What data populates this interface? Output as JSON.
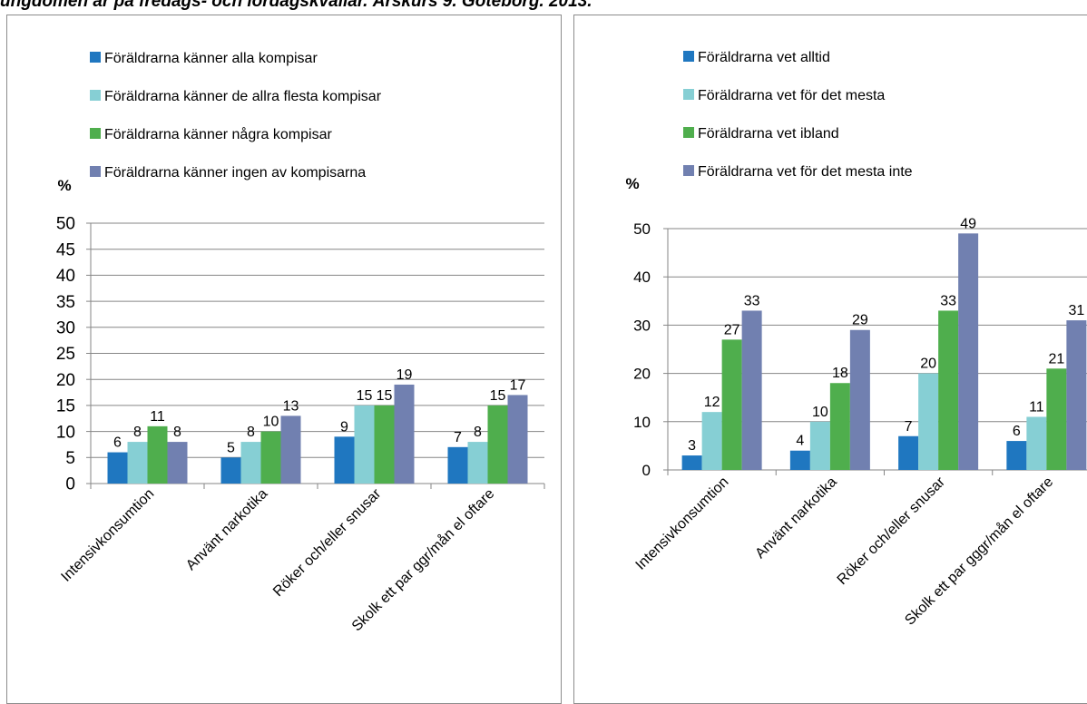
{
  "page": {
    "title": "ungdomen är på fredags- och lördagskvällar. Årskurs 9. Göteborg. 2013."
  },
  "colors": {
    "series": [
      "#1f77c0",
      "#86cfd4",
      "#4fae4d",
      "#7180b0"
    ],
    "axis": "#868686",
    "grid": "#868686",
    "border": "#8c8c8c"
  },
  "chart_data": [
    {
      "type": "bar",
      "title": "",
      "xlabel": "",
      "ylabel": "%",
      "ylim": [
        0,
        50
      ],
      "yticks": [
        0,
        5,
        10,
        15,
        20,
        25,
        30,
        35,
        40,
        45,
        50
      ],
      "grid": true,
      "legend_position": "top",
      "categories": [
        "Intensivkonsumtion",
        "Använt narkotika",
        "Röker och/eller snusar",
        "Skolk ett par ggr/mån el oftare"
      ],
      "series": [
        {
          "name": "Föräldrarna känner alla kompisar",
          "values": [
            6,
            5,
            9,
            7
          ]
        },
        {
          "name": "Föräldrarna känner de allra flesta kompisar",
          "values": [
            8,
            8,
            15,
            8
          ]
        },
        {
          "name": "Föräldrarna känner några kompisar",
          "values": [
            11,
            10,
            15,
            15
          ]
        },
        {
          "name": "Föräldrarna känner ingen av kompisarna",
          "values": [
            8,
            13,
            19,
            17
          ]
        }
      ]
    },
    {
      "type": "bar",
      "title": "",
      "xlabel": "",
      "ylabel": "%",
      "ylim": [
        0,
        50
      ],
      "yticks": [
        0,
        10,
        20,
        30,
        40,
        50
      ],
      "grid": true,
      "legend_position": "top",
      "categories": [
        "Intensivkonsumtion",
        "Använt narkotika",
        "Röker och/eller snusar",
        "Skolk ett par gggr/mån el oftare"
      ],
      "series": [
        {
          "name": "Föräldrarna vet alltid",
          "values": [
            3,
            4,
            7,
            6
          ]
        },
        {
          "name": "Föräldrarna vet för det mesta",
          "values": [
            12,
            10,
            20,
            11
          ]
        },
        {
          "name": "Föräldrarna vet ibland",
          "values": [
            27,
            18,
            33,
            21
          ]
        },
        {
          "name": "Föräldrarna vet för det mesta inte",
          "values": [
            33,
            29,
            49,
            31
          ]
        }
      ]
    }
  ]
}
